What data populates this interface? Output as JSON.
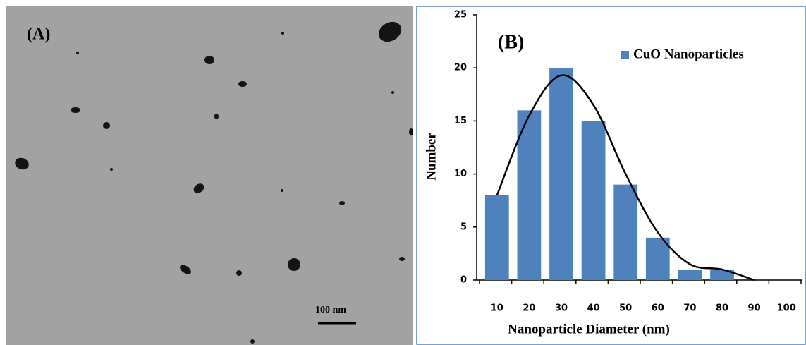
{
  "panel_a": {
    "label": "(A)",
    "scale_bar": "100 nm"
  },
  "chart_data": {
    "type": "bar",
    "annotation": "(B)",
    "x_label": "Nanoparticle Diameter (nm)",
    "y_label": "Number",
    "categories": [
      "10",
      "20",
      "30",
      "40",
      "50",
      "60",
      "70",
      "80",
      "90",
      "100"
    ],
    "series": [
      {
        "name": "CuO Nanoparticles",
        "color": "#4f81bd",
        "values": [
          8,
          16,
          20,
          15,
          9,
          4,
          1,
          1,
          0,
          0
        ]
      },
      {
        "type": "line",
        "color": "#000000",
        "values": [
          8,
          15.5,
          19.3,
          16.5,
          10,
          4.5,
          1.5,
          1,
          0,
          null
        ]
      }
    ],
    "ylim": [
      0,
      25
    ],
    "yticks": [
      0,
      5,
      10,
      15,
      20,
      25
    ],
    "grid": false,
    "legend": "top-right"
  }
}
